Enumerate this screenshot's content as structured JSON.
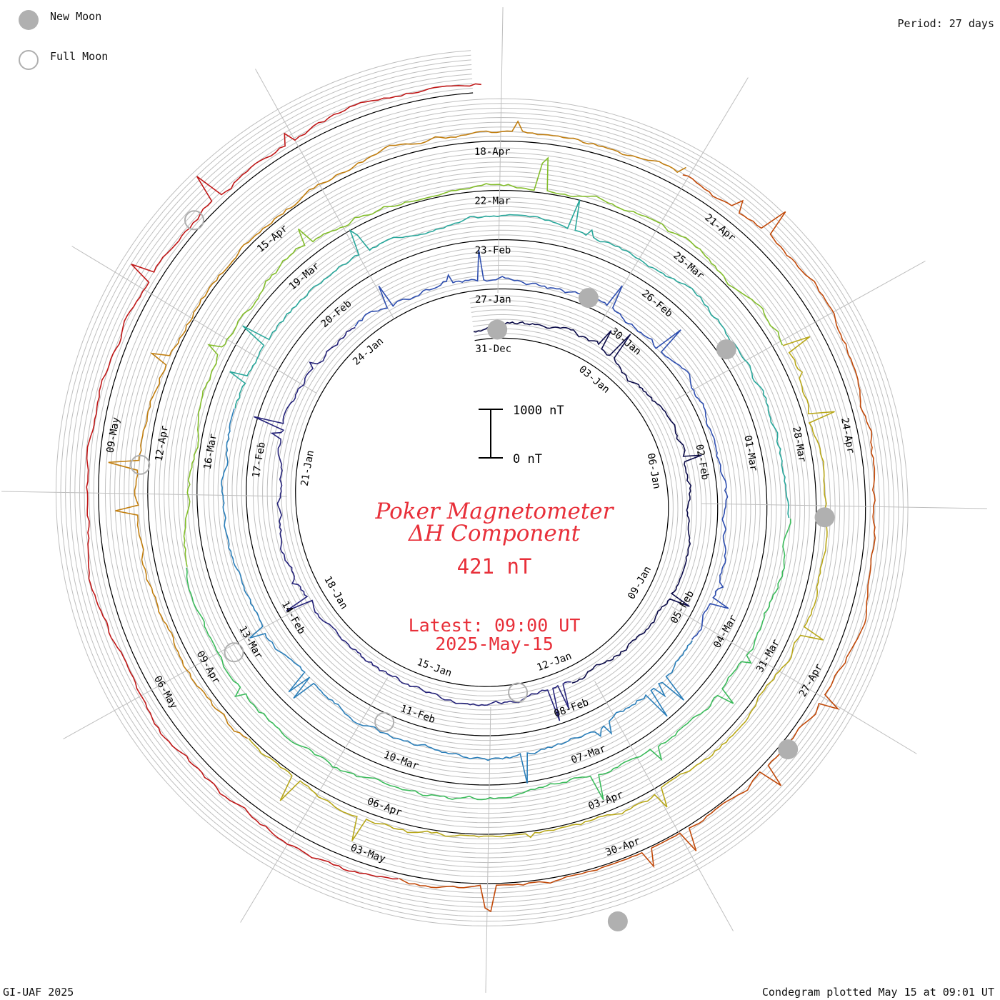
{
  "legend": {
    "new_moon": "New Moon",
    "full_moon": "Full Moon"
  },
  "period": "Period: 27 days",
  "footer_left": "GI-UAF 2025",
  "footer_right": "Condegram plotted May 15 at 09:01 UT",
  "chart_data": {
    "type": "line",
    "subtype": "condegram (spiral time series)",
    "title_line1": "Poker Magnetometer",
    "title_line2": "ΔH Component",
    "current_value": "421 nT",
    "latest_line1": "Latest: 09:00 UT",
    "latest_line2": "2025-May-15",
    "scale_bar": {
      "top_label": "1000 nT",
      "bottom_label": "0 nT"
    },
    "period_days": 27,
    "date_labels": [
      "31-Dec",
      "03-Jan",
      "06-Jan",
      "09-Jan",
      "12-Jan",
      "15-Jan",
      "18-Jan",
      "21-Jan",
      "24-Jan",
      "27-Jan",
      "30-Jan",
      "02-Feb",
      "05-Feb",
      "08-Feb",
      "11-Feb",
      "14-Feb",
      "17-Feb",
      "20-Feb",
      "23-Feb",
      "26-Feb",
      "01-Mar",
      "04-Mar",
      "07-Mar",
      "10-Mar",
      "13-Mar",
      "16-Mar",
      "19-Mar",
      "22-Mar",
      "25-Mar",
      "28-Mar",
      "31-Mar",
      "03-Apr",
      "06-Apr",
      "09-Apr",
      "12-Apr",
      "15-Apr",
      "18-Apr",
      "21-Apr",
      "24-Apr",
      "27-Apr",
      "30-Apr",
      "03-May",
      "06-May",
      "09-May"
    ],
    "new_moon_days": [
      0.6,
      29.4,
      58.8,
      88.5,
      118.3,
      147.8
    ],
    "full_moon_days": [
      13.5,
      43.0,
      72.5,
      102.2,
      132.0
    ],
    "series_colors": [
      "#0c0c4a",
      "#25237a",
      "#2f4fb0",
      "#2b7fba",
      "#2aa89c",
      "#3cbc5c",
      "#84be2c",
      "#b9a81a",
      "#c27f10",
      "#c24a0a",
      "#c01818"
    ],
    "grid_color": "#bfbfbf"
  }
}
